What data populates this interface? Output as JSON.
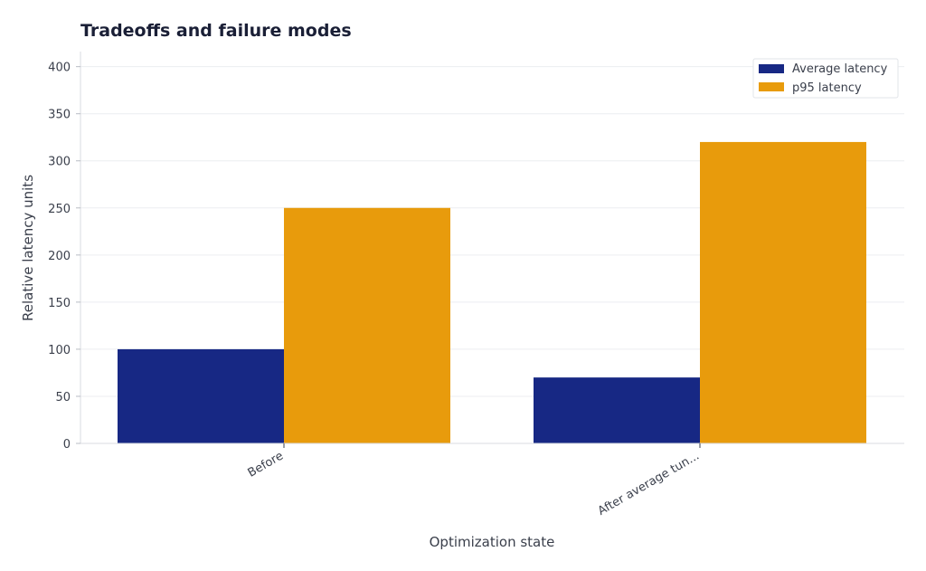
{
  "chart_data": {
    "type": "bar",
    "title": "Tradeoffs and failure modes",
    "xlabel": "Optimization state",
    "ylabel": "Relative latency units",
    "categories": [
      "Before",
      "After average tun..."
    ],
    "series": [
      {
        "name": "Average latency",
        "values": [
          100,
          70
        ],
        "color": "#172884"
      },
      {
        "name": "p95 latency",
        "values": [
          250,
          320
        ],
        "color": "#e89b0c"
      }
    ],
    "ylim": [
      0,
      416
    ],
    "yticks": [
      0,
      50,
      100,
      150,
      200,
      250,
      300,
      350,
      400
    ],
    "grid": true,
    "legend": "top-right"
  }
}
